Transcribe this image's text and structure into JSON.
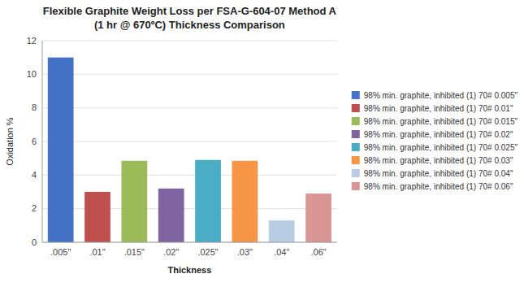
{
  "chart_data": {
    "type": "bar",
    "title": "Flexible Graphite Weight Loss per FSA-G-604-07 Method A",
    "subtitle": "(1 hr @ 670ºC) Thickness Comparison",
    "x_label": "Thickness",
    "y_label": "Oxidation %",
    "categories": [
      ".005\"",
      ".01\"",
      ".015\"",
      ".02\"",
      ".025\"",
      ".03\"",
      ".04\"",
      ".06\""
    ],
    "values": [
      11.0,
      3.0,
      4.85,
      3.2,
      4.9,
      4.85,
      1.3,
      2.9
    ],
    "colors": [
      "#4472C4",
      "#C0504D",
      "#9BBB59",
      "#8064A2",
      "#4BACC6",
      "#F79646",
      "#B8CCE4",
      "#DA9694"
    ],
    "legend_labels": [
      "98% min. graphite, inhibited (1) 70# 0.005\"",
      "98% min. graphite, inhibited (1) 70# 0.01\"",
      "98% min. graphite, inhibited (1) 70# 0.015\"",
      "98% min. graphite, inhibited (1) 70# 0.02\"",
      "98% min. graphite, inhibited (1) 70# 0.025\"",
      "98% min. graphite, inhibited (1) 70# 0.03\"",
      "98% min. graphite, inhibited (1) 70# 0.04\"",
      "98% min. graphite, inhibited (1) 70# 0.06\""
    ],
    "ylim": [
      0,
      12
    ],
    "yticks": [
      0,
      2,
      4,
      6,
      8,
      10,
      12
    ],
    "grid": true,
    "legend": "right"
  }
}
